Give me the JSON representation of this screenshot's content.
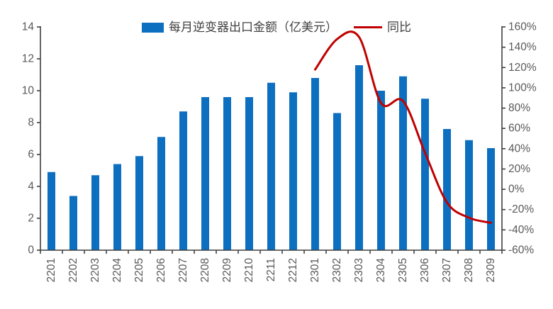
{
  "chart_data": {
    "type": "bar",
    "subtype": "bar+line dual axis",
    "categories": [
      "2201",
      "2202",
      "2203",
      "2204",
      "2205",
      "2206",
      "2207",
      "2208",
      "2209",
      "2210",
      "2211",
      "2212",
      "2301",
      "2302",
      "2303",
      "2304",
      "2305",
      "2306",
      "2307",
      "2308",
      "2309"
    ],
    "series": [
      {
        "name": "每月逆变器出口金额（亿美元）",
        "type": "bar",
        "axis": "left",
        "color": "#0d6fc0",
        "values": [
          4.9,
          3.4,
          4.7,
          5.4,
          5.9,
          7.1,
          8.7,
          9.6,
          9.6,
          9.6,
          10.5,
          9.9,
          10.8,
          8.6,
          11.6,
          10.0,
          10.9,
          9.5,
          7.6,
          6.9,
          6.4
        ]
      },
      {
        "name": "同比",
        "type": "line",
        "axis": "right",
        "color": "#c00000",
        "smooth": true,
        "values": [
          null,
          null,
          null,
          null,
          null,
          null,
          null,
          null,
          null,
          null,
          null,
          null,
          118,
          148,
          150,
          85,
          87,
          36,
          -13,
          -28,
          -33
        ]
      }
    ],
    "left_axis": {
      "min": 0,
      "max": 14,
      "step": 2,
      "suffix": ""
    },
    "right_axis": {
      "min": -60,
      "max": 160,
      "step": 20,
      "suffix": "%"
    },
    "legend_position": "top",
    "grid": false,
    "colors": {
      "axis_line": "#3f3f3f",
      "tick_label": "#595959",
      "legend_text": "#404040",
      "background": "#ffffff"
    }
  }
}
